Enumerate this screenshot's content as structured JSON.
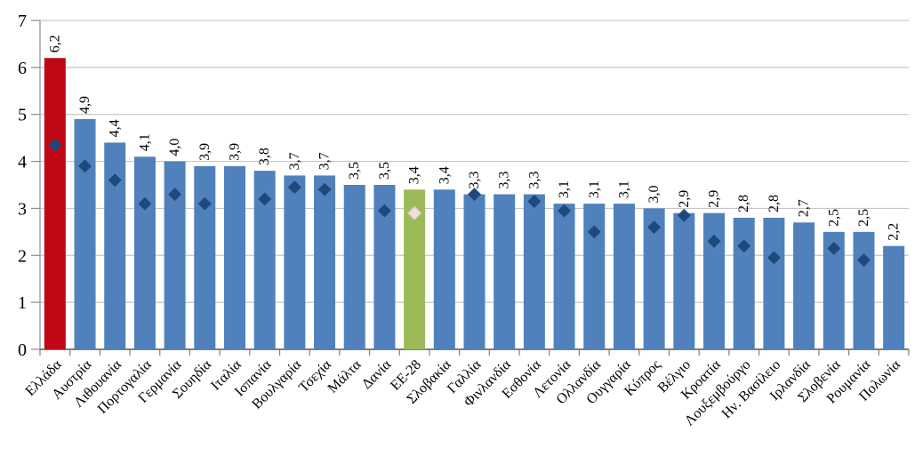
{
  "chart_data": {
    "type": "bar",
    "title": "",
    "xlabel": "",
    "ylabel": "",
    "ylim": [
      0,
      7
    ],
    "yticks": [
      0,
      1,
      2,
      3,
      4,
      5,
      6,
      7
    ],
    "grid": true,
    "legend": "none",
    "decimal_separator": ",",
    "categories": [
      "Ελλάδα",
      "Αυστρία",
      "Λιθουανία",
      "Πορτογαλία",
      "Γερμανία",
      "Σουηδία",
      "Ιταλία",
      "Ισπανία",
      "Βουλγαρία",
      "Τσεχία",
      "Μάλτα",
      "Δανία",
      "ΕΕ-28",
      "Σλοβακία",
      "Γαλλία",
      "Φινλανδία",
      "Εσθονία",
      "Λετονία",
      "Ολλανδία",
      "Ουγγαρία",
      "Κύπρος",
      "Βέλγιο",
      "Κροατία",
      "Λουξεμβούργο",
      "Ην. Βασίλειο",
      "Ιρλανδία",
      "Σλοβενία",
      "Ρουμανία",
      "Πολωνία"
    ],
    "series": [
      {
        "name": "bars",
        "type": "bar",
        "values": [
          6.2,
          4.9,
          4.4,
          4.1,
          4.0,
          3.9,
          3.9,
          3.8,
          3.7,
          3.7,
          3.5,
          3.5,
          3.4,
          3.4,
          3.3,
          3.3,
          3.3,
          3.1,
          3.1,
          3.1,
          3.0,
          2.9,
          2.9,
          2.8,
          2.8,
          2.7,
          2.5,
          2.5,
          2.2
        ],
        "data_labels": [
          "6,2",
          "4,9",
          "4,4",
          "4,1",
          "4,0",
          "3,9",
          "3,9",
          "3,8",
          "3,7",
          "3,7",
          "3,5",
          "3,5",
          "3,4",
          "3,4",
          "3,3",
          "3,3",
          "3,3",
          "3,1",
          "3,1",
          "3,1",
          "3,0",
          "2,9",
          "2,9",
          "2,8",
          "2,8",
          "2,7",
          "2,5",
          "2,5",
          "2,2"
        ]
      },
      {
        "name": "diamond-markers",
        "type": "scatter",
        "marker": "diamond",
        "values": [
          4.35,
          3.9,
          3.6,
          3.1,
          3.3,
          3.1,
          null,
          3.2,
          3.45,
          3.4,
          null,
          2.95,
          2.9,
          null,
          3.3,
          null,
          3.15,
          2.95,
          2.5,
          null,
          2.6,
          2.85,
          2.3,
          2.2,
          1.95,
          null,
          2.15,
          1.9,
          null
        ]
      }
    ],
    "colors": {
      "bar_default": "#5081BC",
      "marker_default": "#1F497D",
      "gridline": "#C6C6C6",
      "axis_line": "#8C8C8C",
      "x_axis_line": "#7F7F7F",
      "label_text": "#000000"
    },
    "overrides": [
      {
        "index": 0,
        "bar": "#C00714"
      },
      {
        "index": 12,
        "bar": "#9BBB59",
        "marker": "#F2DEDE",
        "marker_stroke": "#D5C4C4"
      }
    ]
  }
}
